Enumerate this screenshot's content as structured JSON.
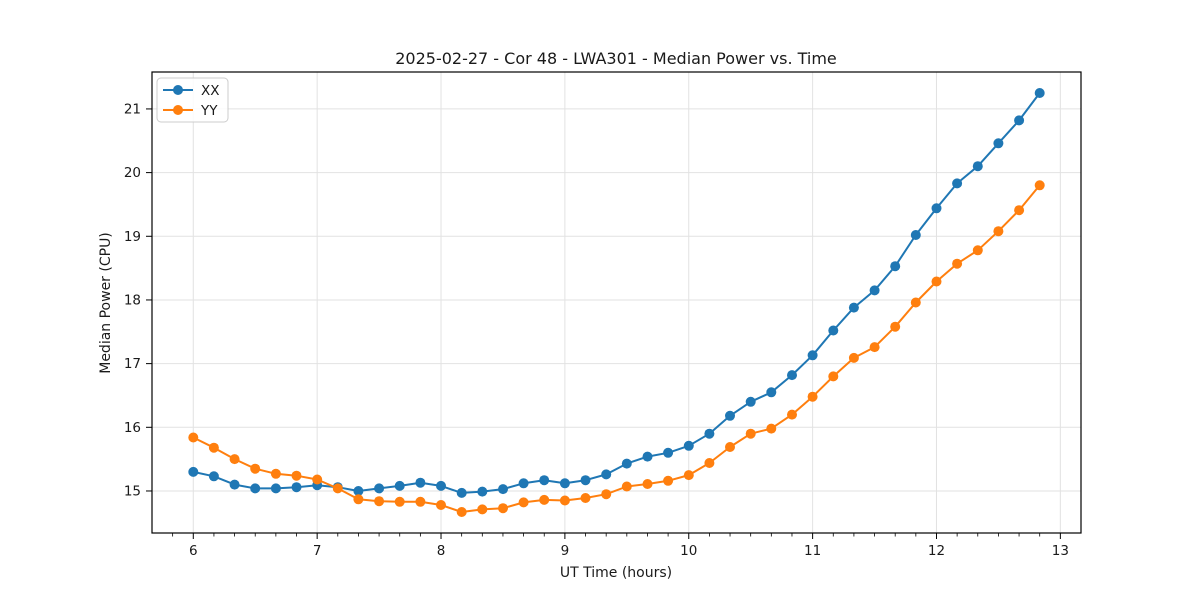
{
  "chart": {
    "title": "2025-02-27 - Cor 48 - LWA301 - Median Power vs. Time",
    "xlabel": "UT Time (hours)",
    "ylabel": "Median Power (CPU)"
  },
  "chart_data": {
    "type": "line",
    "title": "2025-02-27 - Cor 48 - LWA301 - Median Power vs. Time",
    "xlabel": "UT Time (hours)",
    "ylabel": "Median Power (CPU)",
    "xlim": [
      5.6667,
      13.1667
    ],
    "ylim": [
      14.34,
      21.58
    ],
    "x_ticks": [
      6,
      7,
      8,
      9,
      10,
      11,
      12,
      13
    ],
    "y_ticks": [
      15,
      16,
      17,
      18,
      19,
      20,
      21
    ],
    "x_minor_tick_step": 0.16667,
    "grid": true,
    "grid_color": "#e2e2e2",
    "legend_position": "upper left",
    "marker": "circle",
    "x": [
      6,
      6.1667,
      6.3333,
      6.5,
      6.6667,
      6.8333,
      7,
      7.1667,
      7.3333,
      7.5,
      7.6667,
      7.8333,
      8,
      8.1667,
      8.3333,
      8.5,
      8.6667,
      8.8333,
      9,
      9.1667,
      9.3333,
      9.5,
      9.6667,
      9.8333,
      10,
      10.1667,
      10.3333,
      10.5,
      10.6667,
      10.8333,
      11,
      11.1667,
      11.3333,
      11.5,
      11.6667,
      11.8333,
      12,
      12.1667,
      12.3333,
      12.5,
      12.6667,
      12.8333
    ],
    "series": [
      {
        "name": "XX",
        "color": "#1f77b4",
        "values": [
          15.3,
          15.23,
          15.1,
          15.04,
          15.04,
          15.06,
          15.09,
          15.06,
          15.0,
          15.04,
          15.08,
          15.13,
          15.08,
          14.97,
          14.99,
          15.03,
          15.12,
          15.17,
          15.12,
          15.17,
          15.26,
          15.43,
          15.54,
          15.6,
          15.71,
          15.9,
          16.18,
          16.4,
          16.55,
          16.82,
          17.13,
          17.52,
          17.88,
          18.15,
          18.53,
          19.02,
          19.44,
          19.83,
          20.1,
          20.46,
          20.82,
          21.25
        ]
      },
      {
        "name": "YY",
        "color": "#ff7f0e",
        "values": [
          15.84,
          15.68,
          15.5,
          15.35,
          15.27,
          15.24,
          15.18,
          15.04,
          14.87,
          14.84,
          14.83,
          14.83,
          14.78,
          14.67,
          14.71,
          14.73,
          14.82,
          14.86,
          14.85,
          14.89,
          14.95,
          15.07,
          15.11,
          15.16,
          15.25,
          15.44,
          15.69,
          15.9,
          15.98,
          16.2,
          16.48,
          16.8,
          17.09,
          17.26,
          17.58,
          17.96,
          18.29,
          18.57,
          18.78,
          19.08,
          19.41,
          19.8
        ]
      }
    ]
  }
}
